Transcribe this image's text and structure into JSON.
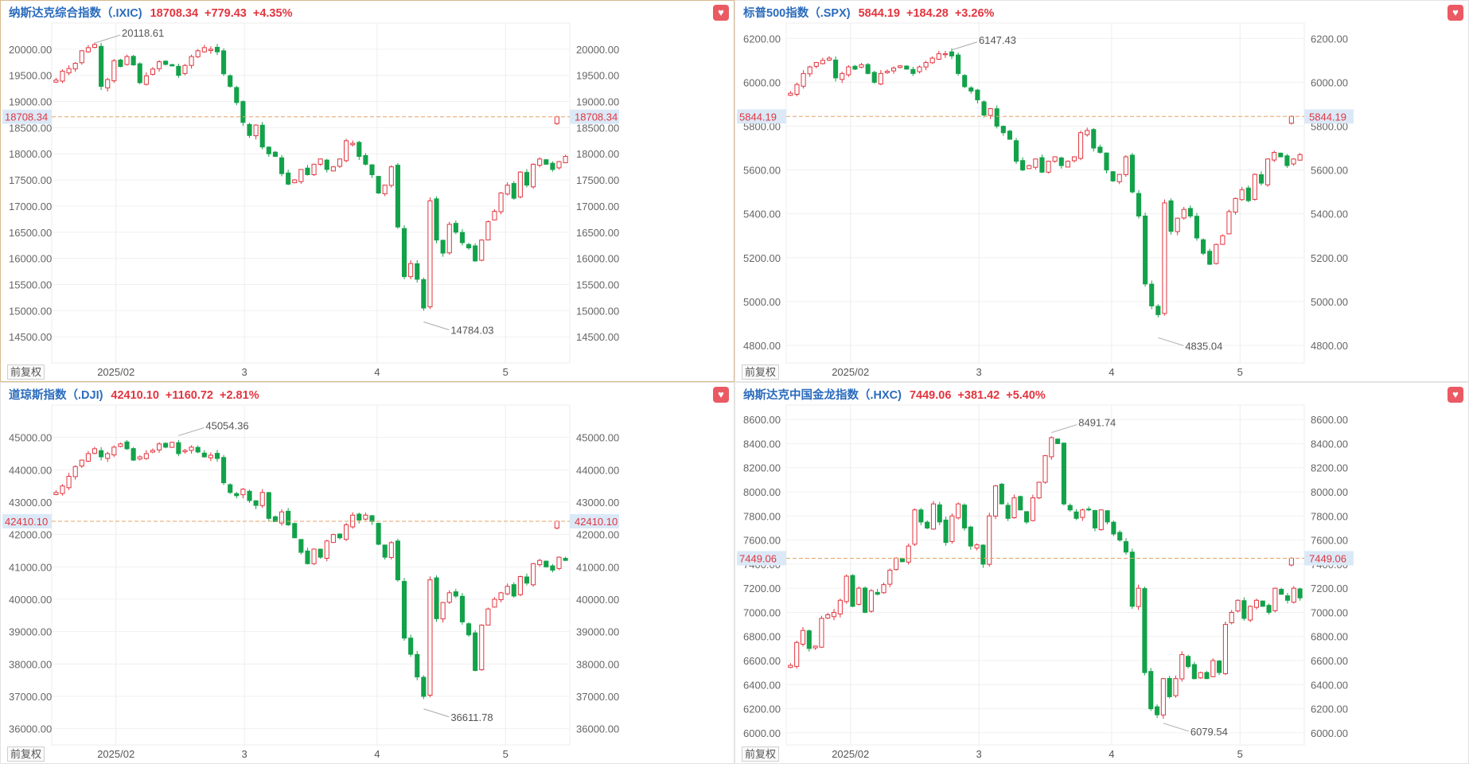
{
  "ui": {
    "adjust_label": "前复权",
    "favorite_icon": "heart-icon",
    "colors": {
      "up": "#e2353f",
      "down": "#13a24a",
      "name": "#2a6bbd",
      "current_line": "#e3a368",
      "current_bg": "#dbe9f7"
    }
  },
  "panels": [
    {
      "name": "纳斯达克综合指数（.IXIC)",
      "price": "18708.34",
      "change": "+779.43",
      "pct": "+4.35%",
      "active": true,
      "current_label": "18708.34",
      "high_label": "20118.61",
      "low_label": "14784.03",
      "x_labels": [
        {
          "label": "2025/02",
          "day": 14
        },
        {
          "label": "3",
          "day": 44
        },
        {
          "label": "4",
          "day": 75
        },
        {
          "label": "5",
          "day": 105
        }
      ],
      "chart_data": {
        "type": "candlestick",
        "ylim": [
          14000,
          20500
        ],
        "yticks": [
          20000,
          19500,
          19000,
          18500,
          18000,
          17500,
          17000,
          16500,
          16000,
          15500,
          15000,
          14500
        ],
        "ytick_labels": [
          "20000.00",
          "19500.00",
          "19000.00",
          "18500.00",
          "18000.00",
          "17500.00",
          "17000.00",
          "16500.00",
          "16000.00",
          "15500.00",
          "15000.00",
          "14500.00"
        ],
        "current": 18708.34,
        "high": 20118.61,
        "low": 14784.03,
        "x_range": [
          -1,
          120
        ],
        "closes": [
          19410,
          19580,
          19630,
          19730,
          19970,
          20030,
          20090,
          19290,
          19420,
          19780,
          19670,
          19860,
          19700,
          19360,
          19490,
          19620,
          19760,
          19710,
          19680,
          19500,
          19690,
          19860,
          19970,
          20030,
          20000,
          19950,
          19530,
          19290,
          18980,
          18600,
          18350,
          18550,
          18130,
          18000,
          17950,
          17620,
          17420,
          17500,
          17700,
          17600,
          17800,
          17900,
          17700,
          17750,
          17900,
          18250,
          18200,
          17950,
          17800,
          17600,
          17250,
          17400,
          17750,
          16600,
          15650,
          15900,
          15600,
          15050,
          17100,
          16350,
          16100,
          16650,
          16500,
          16300,
          16200,
          15950,
          16350,
          16700,
          16900,
          17250,
          17400,
          17150,
          17650,
          17400,
          17800,
          17900,
          17800,
          17700,
          17850,
          17950
        ]
      }
    },
    {
      "name": "标普500指数（.SPX)",
      "price": "5844.19",
      "change": "+184.28",
      "pct": "+3.26%",
      "active": false,
      "current_label": "5844.19",
      "high_label": "6147.43",
      "low_label": "4835.04",
      "x_labels": [
        {
          "label": "2025/02",
          "day": 14
        },
        {
          "label": "3",
          "day": 44
        },
        {
          "label": "4",
          "day": 75
        },
        {
          "label": "5",
          "day": 105
        }
      ],
      "chart_data": {
        "type": "candlestick",
        "ylim": [
          4720,
          6270
        ],
        "yticks": [
          6200,
          6000,
          5800,
          5600,
          5400,
          5200,
          5000,
          4800
        ],
        "ytick_labels": [
          "6200.00",
          "6000.00",
          "5800.00",
          "5600.00",
          "5400.00",
          "5200.00",
          "5000.00",
          "4800.00"
        ],
        "current": 5844.19,
        "high": 6147.43,
        "low": 4835.04,
        "x_range": [
          -1,
          120
        ],
        "closes": [
          5950,
          5990,
          6040,
          6070,
          6090,
          6100,
          6110,
          6020,
          6040,
          6070,
          6060,
          6080,
          6040,
          6000,
          6040,
          6050,
          6065,
          6075,
          6060,
          6040,
          6070,
          6090,
          6110,
          6130,
          6130,
          6120,
          6040,
          5980,
          5960,
          5920,
          5850,
          5880,
          5800,
          5770,
          5740,
          5640,
          5600,
          5620,
          5650,
          5590,
          5640,
          5660,
          5620,
          5640,
          5660,
          5770,
          5780,
          5700,
          5680,
          5600,
          5550,
          5580,
          5660,
          5500,
          5390,
          5080,
          4980,
          4940,
          5450,
          5320,
          5380,
          5420,
          5390,
          5290,
          5220,
          5170,
          5260,
          5300,
          5410,
          5470,
          5510,
          5460,
          5580,
          5540,
          5650,
          5680,
          5660,
          5620,
          5650,
          5670
        ]
      }
    },
    {
      "name": "道琼斯指数（.DJI)",
      "price": "42410.10",
      "change": "+1160.72",
      "pct": "+2.81%",
      "active": false,
      "current_label": "42410.10",
      "high_label": "45054.36",
      "low_label": "36611.78",
      "x_labels": [
        {
          "label": "2025/02",
          "day": 14
        },
        {
          "label": "3",
          "day": 44
        },
        {
          "label": "4",
          "day": 75
        },
        {
          "label": "5",
          "day": 105
        }
      ],
      "chart_data": {
        "type": "candlestick",
        "ylim": [
          35500,
          46000
        ],
        "yticks": [
          45000,
          44000,
          43000,
          42000,
          41000,
          40000,
          39000,
          38000,
          37000,
          36000
        ],
        "ytick_labels": [
          "45000.00",
          "44000.00",
          "43000.00",
          "42000.00",
          "41000.00",
          "40000.00",
          "39000.00",
          "38000.00",
          "37000.00",
          "36000.00"
        ],
        "current": 42410.1,
        "high": 45054.36,
        "low": 36611.78,
        "x_range": [
          -1,
          120
        ],
        "closes": [
          43300,
          43500,
          43800,
          44100,
          44300,
          44500,
          44650,
          44400,
          44500,
          44700,
          44800,
          44650,
          44300,
          44400,
          44500,
          44600,
          44800,
          44700,
          44850,
          44500,
          44600,
          44700,
          44550,
          44400,
          44450,
          44350,
          43600,
          43300,
          43200,
          43400,
          43050,
          42900,
          43300,
          42500,
          42400,
          42700,
          42300,
          41900,
          41450,
          41100,
          41550,
          41300,
          41800,
          42000,
          41900,
          42300,
          42600,
          42450,
          42600,
          42400,
          41700,
          41300,
          41750,
          40600,
          38800,
          38300,
          37600,
          37000,
          40600,
          39400,
          39900,
          40200,
          40100,
          39300,
          38900,
          37800,
          39200,
          39700,
          40000,
          40200,
          40400,
          40100,
          40700,
          40500,
          41100,
          41200,
          41000,
          40900,
          41300,
          41200
        ]
      }
    },
    {
      "name": "纳斯达克中国金龙指数（.HXC)",
      "price": "7449.06",
      "change": "+381.42",
      "pct": "+5.40%",
      "active": false,
      "current_label": "7449.06",
      "high_label": "8491.74",
      "low_label": "6079.54",
      "x_labels": [
        {
          "label": "2025/02",
          "day": 14
        },
        {
          "label": "3",
          "day": 44
        },
        {
          "label": "4",
          "day": 75
        },
        {
          "label": "5",
          "day": 105
        }
      ],
      "chart_data": {
        "type": "candlestick",
        "ylim": [
          5900,
          8720
        ],
        "yticks": [
          8600,
          8400,
          8200,
          8000,
          7800,
          7600,
          7400,
          7200,
          7000,
          6800,
          6600,
          6400,
          6200,
          6000
        ],
        "ytick_labels": [
          "8600.00",
          "8400.00",
          "8200.00",
          "8000.00",
          "7800.00",
          "7600.00",
          "7400.00",
          "7200.00",
          "7000.00",
          "6800.00",
          "6600.00",
          "6400.00",
          "6200.00",
          "6000.00"
        ],
        "current": 7449.06,
        "high": 8491.74,
        "low": 6079.54,
        "x_range": [
          -1,
          120
        ],
        "closes": [
          6560,
          6750,
          6850,
          6700,
          6720,
          6950,
          6980,
          7000,
          7100,
          7300,
          7050,
          7200,
          7000,
          7180,
          7150,
          7230,
          7350,
          7450,
          7420,
          7550,
          7850,
          7750,
          7700,
          7900,
          7750,
          7580,
          7800,
          7900,
          7700,
          7550,
          7560,
          7400,
          7800,
          8050,
          7900,
          7780,
          7950,
          7850,
          7750,
          7950,
          8080,
          8300,
          8450,
          8400,
          7900,
          7850,
          7780,
          7850,
          7850,
          7700,
          7850,
          7750,
          7650,
          7600,
          7500,
          7050,
          7200,
          6500,
          6200,
          6150,
          6450,
          6300,
          6450,
          6650,
          6550,
          6450,
          6500,
          6450,
          6600,
          6500,
          6900,
          7000,
          7100,
          6950,
          7050,
          7100,
          7050,
          7000,
          7200,
          7150,
          7100,
          7200,
          7120
        ]
      }
    }
  ]
}
